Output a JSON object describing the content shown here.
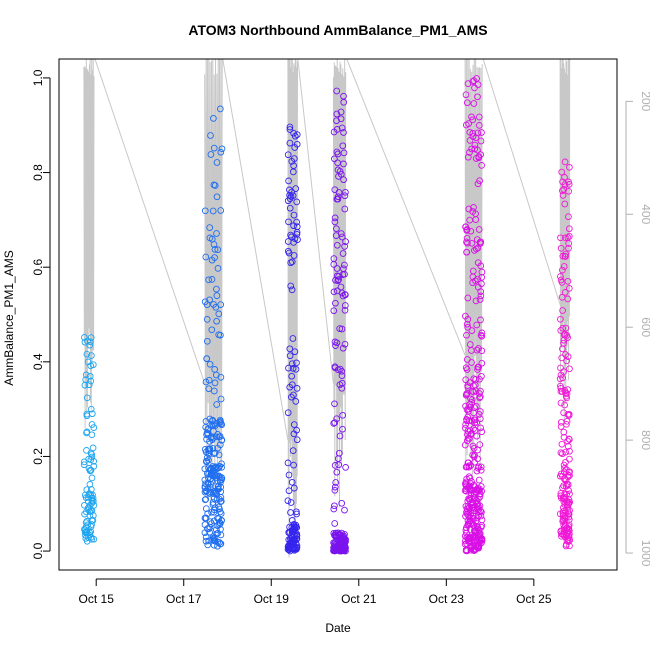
{
  "chart_data": {
    "type": "scatter",
    "title": "ATOM3 Northbound AmmBalance_PM1_AMS",
    "xlabel": "Date",
    "ylabel": "AmmBalance_PM1_AMS",
    "x_tick_labels": [
      "Oct 15",
      "Oct 17",
      "Oct 19",
      "Oct 21",
      "Oct 23",
      "Oct 25"
    ],
    "x_ticks_day": [
      15,
      17,
      19,
      21,
      23,
      25
    ],
    "xlim_day": [
      14.15,
      26.9
    ],
    "y_tick_labels": [
      "0.0",
      "0.2",
      "0.4",
      "0.6",
      "0.8",
      "1.0"
    ],
    "y_ticks": [
      0,
      0.2,
      0.4,
      0.6,
      0.8,
      1.0
    ],
    "ylim": [
      -0.04,
      1.04
    ],
    "right_axis": {
      "label": "",
      "tick_labels": [
        "200",
        "400",
        "600",
        "800",
        "1000"
      ],
      "ticks": [
        200,
        400,
        600,
        800,
        1000
      ],
      "lim": [
        1030,
        125
      ],
      "reversed": true,
      "color": "#b0b0b0"
    },
    "altitude_trace_color": "#c8c8c8",
    "flights": [
      {
        "name": "Oct 14-15",
        "x_range": [
          14.72,
          14.95
        ],
        "color": "#1ea5f0",
        "n": 95,
        "y_quantiles": [
          0.02,
          0.06,
          0.12,
          0.22,
          0.46
        ]
      },
      {
        "name": "Oct 17",
        "x_range": [
          17.48,
          17.88
        ],
        "color": "#1f6ef0",
        "n": 240,
        "y_quantiles": [
          0.01,
          0.12,
          0.18,
          0.28,
          0.94
        ]
      },
      {
        "name": "Oct 19",
        "x_range": [
          19.38,
          19.6
        ],
        "color": "#3525ee",
        "n": 150,
        "y_quantiles": [
          0.0,
          0.02,
          0.06,
          0.62,
          0.93
        ]
      },
      {
        "name": "Oct 20",
        "x_range": [
          20.42,
          20.7
        ],
        "color": "#7a14ee",
        "n": 230,
        "y_quantiles": [
          0.0,
          0.01,
          0.04,
          0.55,
          0.98
        ]
      },
      {
        "name": "Oct 23",
        "x_range": [
          23.43,
          23.82
        ],
        "color": "#d910e6",
        "n": 360,
        "y_quantiles": [
          0.0,
          0.06,
          0.14,
          0.38,
          1.0
        ]
      },
      {
        "name": "Oct 25",
        "x_range": [
          25.6,
          25.82
        ],
        "color": "#f01ad6",
        "n": 190,
        "y_quantiles": [
          0.01,
          0.07,
          0.16,
          0.38,
          0.83
        ]
      }
    ]
  }
}
